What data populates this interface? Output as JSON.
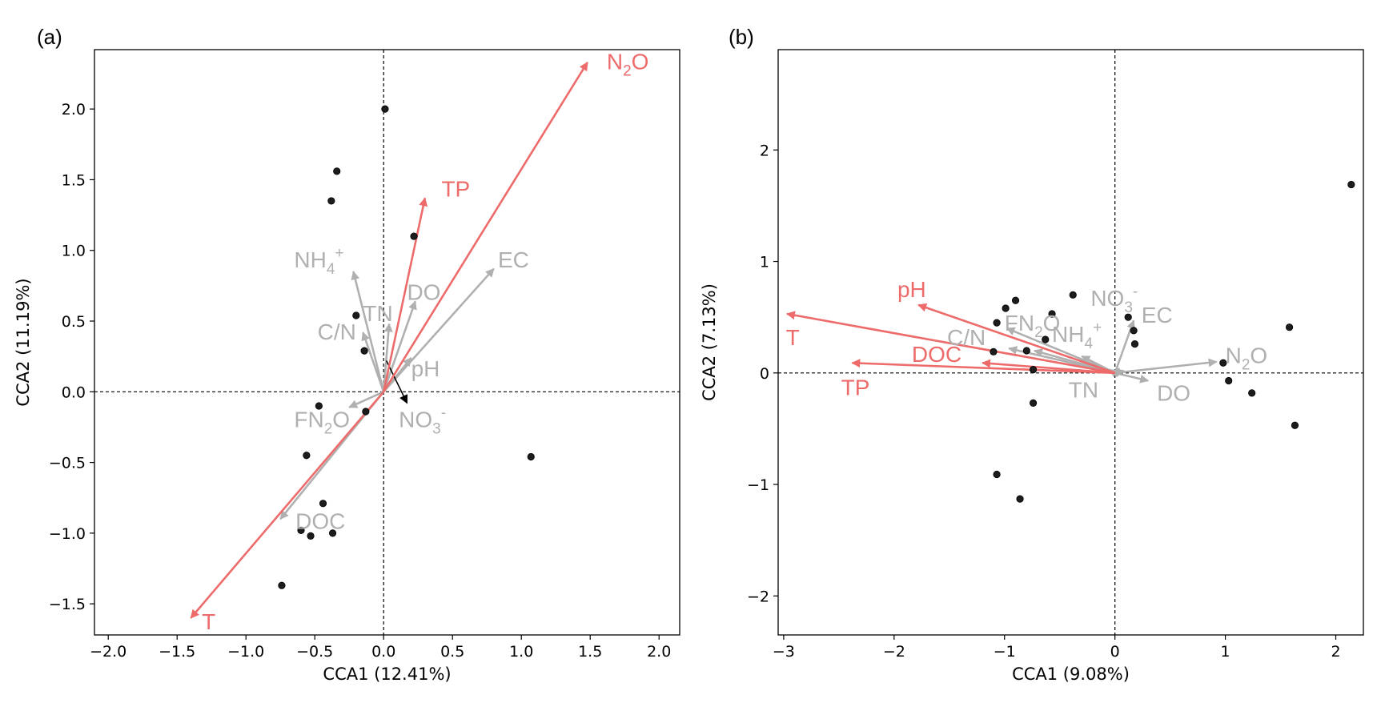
{
  "figure": {
    "colors": {
      "significant": "#ee6b6b",
      "other": "#b0b0b0",
      "sample": "#1c1c1c",
      "extra": "#000000",
      "frame": "#000000"
    }
  },
  "chart_data": [
    {
      "type": "scatter",
      "panel_label": "(a)",
      "xlabel": "CCA1 (12.41%)",
      "ylabel": "CCA2 (11.19%)",
      "xlim": [
        -2.1,
        2.15
      ],
      "ylim": [
        -1.72,
        2.42
      ],
      "xticks": [
        -2.0,
        -1.5,
        -1.0,
        -0.5,
        0.0,
        0.5,
        1.0,
        1.5,
        2.0
      ],
      "xtick_labels": [
        "−2.0",
        "−1.5",
        "−1.0",
        "−0.5",
        "0.0",
        "0.5",
        "1.0",
        "1.5",
        "2.0"
      ],
      "yticks": [
        -1.5,
        -1.0,
        -0.5,
        0.0,
        0.5,
        1.0,
        1.5,
        2.0
      ],
      "ytick_labels": [
        "−1.5",
        "−1.0",
        "−0.5",
        "0.0",
        "0.5",
        "1.0",
        "1.5",
        "2.0"
      ],
      "reference_lines": "dashed lines at x = 0 and y = 0",
      "points": [
        {
          "x": 0.01,
          "y": 2.0
        },
        {
          "x": -0.34,
          "y": 1.56
        },
        {
          "x": -0.38,
          "y": 1.35
        },
        {
          "x": 0.22,
          "y": 1.1
        },
        {
          "x": -0.2,
          "y": 0.54
        },
        {
          "x": -0.14,
          "y": 0.29
        },
        {
          "x": -0.47,
          "y": -0.1
        },
        {
          "x": -0.13,
          "y": -0.14
        },
        {
          "x": 1.07,
          "y": -0.46
        },
        {
          "x": -0.56,
          "y": -0.45
        },
        {
          "x": -0.44,
          "y": -0.79
        },
        {
          "x": -0.6,
          "y": -0.98
        },
        {
          "x": -0.53,
          "y": -1.02
        },
        {
          "x": -0.37,
          "y": -1.0
        },
        {
          "x": -0.74,
          "y": -1.37
        }
      ],
      "vectors": [
        {
          "name": "N₂O",
          "label": "N",
          "sub": "2",
          "tail": "O",
          "x": 1.48,
          "y": 2.33,
          "significant": true,
          "lx": 1.62,
          "ly": 2.28
        },
        {
          "name": "TP",
          "label": "TP",
          "x": 0.3,
          "y": 1.37,
          "significant": true,
          "lx": 0.42,
          "ly": 1.38
        },
        {
          "name": "T",
          "label": "T",
          "x": -1.4,
          "y": -1.6,
          "significant": true,
          "lx": -1.32,
          "ly": -1.68
        },
        {
          "name": "EC",
          "label": "EC",
          "x": 0.8,
          "y": 0.87,
          "significant": false,
          "lx": 0.83,
          "ly": 0.88
        },
        {
          "name": "NH₄⁺",
          "label": "NH",
          "sub": "4",
          "sup": "+",
          "x": -0.22,
          "y": 0.85,
          "significant": false,
          "lx": -0.65,
          "ly": 0.88
        },
        {
          "name": "DO",
          "label": "DO",
          "x": 0.23,
          "y": 0.64,
          "significant": false,
          "lx": 0.17,
          "ly": 0.65
        },
        {
          "name": "TN",
          "label": "TN",
          "x": 0.04,
          "y": 0.48,
          "significant": false,
          "lx": -0.15,
          "ly": 0.5
        },
        {
          "name": "C/N",
          "label": "C/N",
          "x": -0.15,
          "y": 0.42,
          "significant": false,
          "lx": -0.48,
          "ly": 0.37
        },
        {
          "name": "pH",
          "label": "pH",
          "x": 0.2,
          "y": 0.24,
          "significant": false,
          "lx": 0.2,
          "ly": 0.11
        },
        {
          "name": "FN₂O",
          "label": "FN",
          "sub": "2",
          "tail": "O",
          "x": -0.25,
          "y": -0.11,
          "significant": false,
          "lx": -0.65,
          "ly": -0.25
        },
        {
          "name": "DOC",
          "label": "DOC",
          "x": -0.75,
          "y": -0.9,
          "significant": false,
          "lx": -0.64,
          "ly": -0.97
        },
        {
          "name": "NO₃⁻",
          "label": "NO",
          "sub": "3",
          "sup": "-",
          "x": 0.17,
          "y": -0.08,
          "significant": false,
          "extra": true,
          "from_x": 0.02,
          "from_y": 0.22,
          "lx": 0.11,
          "ly": -0.25
        }
      ]
    },
    {
      "type": "scatter",
      "panel_label": "(b)",
      "xlabel": "CCA1 (9.08%)",
      "ylabel": "CCA2 (7.13%)",
      "xlim": [
        -3.05,
        2.25
      ],
      "ylim": [
        -2.35,
        2.9
      ],
      "xticks": [
        -3,
        -2,
        -1,
        0,
        1,
        2
      ],
      "xtick_labels": [
        "−3",
        "−2",
        "−1",
        "0",
        "1",
        "2"
      ],
      "yticks": [
        -2,
        -1,
        0,
        1,
        2
      ],
      "ytick_labels": [
        "−2",
        "−1",
        "0",
        "1",
        "2"
      ],
      "reference_lines": "dashed lines at x = 0 and y = 0",
      "points": [
        {
          "x": 2.14,
          "y": 1.69
        },
        {
          "x": -0.38,
          "y": 0.7
        },
        {
          "x": -0.9,
          "y": 0.65
        },
        {
          "x": -0.99,
          "y": 0.58
        },
        {
          "x": -0.57,
          "y": 0.53
        },
        {
          "x": 0.12,
          "y": 0.5
        },
        {
          "x": -1.07,
          "y": 0.45
        },
        {
          "x": 0.17,
          "y": 0.38
        },
        {
          "x": 1.58,
          "y": 0.41
        },
        {
          "x": -0.63,
          "y": 0.3
        },
        {
          "x": 0.18,
          "y": 0.26
        },
        {
          "x": -1.1,
          "y": 0.19
        },
        {
          "x": -0.8,
          "y": 0.2
        },
        {
          "x": 0.98,
          "y": 0.09
        },
        {
          "x": -0.74,
          "y": 0.03
        },
        {
          "x": 1.03,
          "y": -0.07
        },
        {
          "x": 1.24,
          "y": -0.18
        },
        {
          "x": -0.74,
          "y": -0.27
        },
        {
          "x": 1.63,
          "y": -0.47
        },
        {
          "x": -1.07,
          "y": -0.91
        },
        {
          "x": -0.86,
          "y": -1.13
        }
      ],
      "vectors": [
        {
          "name": "T",
          "label": "T",
          "x": -2.97,
          "y": 0.53,
          "significant": true,
          "lx": -2.98,
          "ly": 0.25
        },
        {
          "name": "pH",
          "label": "pH",
          "x": -1.78,
          "y": 0.61,
          "significant": true,
          "lx": -1.97,
          "ly": 0.68
        },
        {
          "name": "DOC",
          "label": "DOC",
          "x": -1.2,
          "y": 0.09,
          "significant": true,
          "lx": -1.84,
          "ly": 0.1
        },
        {
          "name": "TP",
          "label": "TP",
          "x": -2.38,
          "y": 0.09,
          "significant": true,
          "lx": -2.48,
          "ly": -0.2
        },
        {
          "name": "FN₂O",
          "label": "FN",
          "sub": "2",
          "tail": "O",
          "x": -0.98,
          "y": 0.4,
          "significant": false,
          "lx": -1.0,
          "ly": 0.38
        },
        {
          "name": "C/N",
          "label": "C/N",
          "x": -0.96,
          "y": 0.22,
          "significant": false,
          "lx": -1.52,
          "ly": 0.25
        },
        {
          "name": "NH₄⁺",
          "label": "NH",
          "sub": "4",
          "sup": "+",
          "x": -0.73,
          "y": 0.2,
          "significant": false,
          "lx": -0.57,
          "ly": 0.28
        },
        {
          "name": "NO₃⁻",
          "label": "NO",
          "sub": "3",
          "sup": "-",
          "x": -0.3,
          "y": 0.15,
          "significant": false,
          "lx": -0.22,
          "ly": 0.6
        },
        {
          "name": "EC",
          "label": "EC",
          "x": 0.17,
          "y": 0.47,
          "significant": false,
          "lx": 0.24,
          "ly": 0.45
        },
        {
          "name": "N₂O",
          "label": "N",
          "sub": "2",
          "tail": "O",
          "x": 0.92,
          "y": 0.1,
          "significant": false,
          "lx": 1.0,
          "ly": 0.09
        },
        {
          "name": "DO",
          "label": "DO",
          "x": 0.3,
          "y": -0.07,
          "significant": false,
          "lx": 0.38,
          "ly": -0.25
        },
        {
          "name": "TN",
          "label": "TN",
          "x": -0.05,
          "y": 0.03,
          "significant": false,
          "lx": -0.42,
          "ly": -0.22
        },
        {
          "name": "TN-2",
          "x": 0.04,
          "y": 0.04,
          "significant": false
        },
        {
          "name": "TN-3",
          "x": 0.08,
          "y": 0.02,
          "significant": false
        }
      ]
    }
  ]
}
